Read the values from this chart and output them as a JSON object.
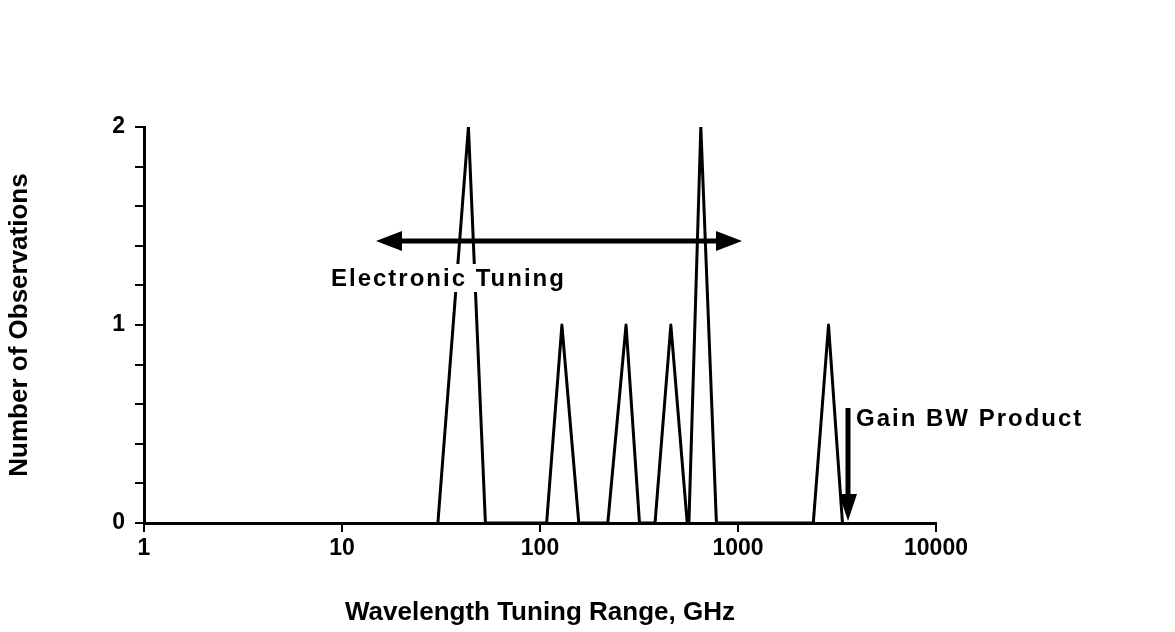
{
  "chart_data": {
    "type": "line",
    "xlabel": "Wavelength Tuning Range, GHz",
    "ylabel": "Number of Observations",
    "log": "x",
    "series": [
      {
        "color": "#000000",
        "x": [
          30.5,
          43.5,
          53,
          108,
          129,
          157,
          220,
          272,
          318,
          381,
          458,
          554,
          565,
          649,
          778,
          2400,
          2865,
          3370
        ],
        "values": [
          0,
          2,
          0,
          0,
          1,
          0,
          0,
          1,
          0,
          0,
          1,
          0,
          0,
          2,
          0,
          0,
          1,
          0
        ]
      }
    ],
    "xlim": [
      1,
      10000
    ],
    "xticks": [
      1,
      10,
      100,
      1000,
      10000
    ],
    "ylim": [
      0,
      2
    ],
    "yticks": [
      0,
      {
        "value": 0.2,
        "label": null
      },
      {
        "value": 0.4,
        "label": null
      },
      {
        "value": 0.6,
        "label": null
      },
      {
        "value": 0.8,
        "label": null
      },
      1,
      {
        "value": 1.2,
        "label": null
      },
      {
        "value": 1.4,
        "label": null
      },
      {
        "value": 1.6,
        "label": null
      },
      {
        "value": 1.8,
        "label": null
      },
      2
    ],
    "annotations": [
      "Electronic Tuning",
      "Gain BW Product"
    ],
    "grid": false,
    "legend": false,
    "marker": "none",
    "line_style": "solid"
  }
}
